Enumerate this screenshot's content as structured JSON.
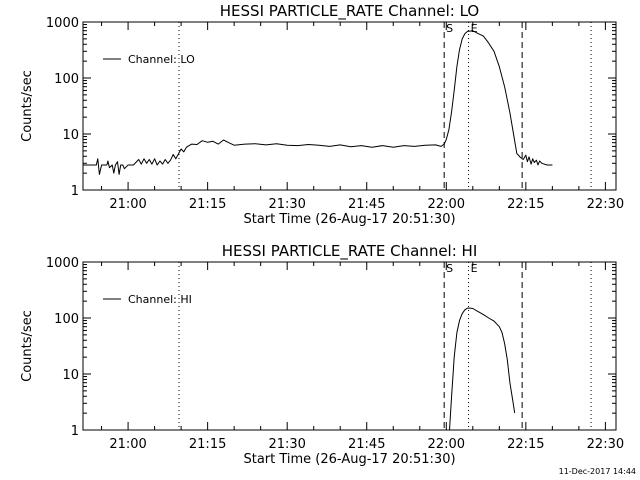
{
  "footer": {
    "timestamp": "11-Dec-2017 14:44"
  },
  "chart_data": [
    {
      "type": "line",
      "title": "HESSI PARTICLE_RATE Channel: LO",
      "xlabel": "Start Time (26-Aug-17 20:51:30)",
      "ylabel": "Counts/sec",
      "legend": {
        "label": "Channel: LO",
        "placement": "top-left"
      },
      "x_unit": "minutes of day",
      "xlim": [
        1251.5,
        1352.0
      ],
      "ylim": [
        1,
        1000
      ],
      "yscale": "log",
      "x_ticks": [
        {
          "value": 1260,
          "label": "21:00"
        },
        {
          "value": 1275,
          "label": "21:15"
        },
        {
          "value": 1290,
          "label": "21:30"
        },
        {
          "value": 1305,
          "label": "21:45"
        },
        {
          "value": 1320,
          "label": "22:00"
        },
        {
          "value": 1335,
          "label": "22:15"
        },
        {
          "value": 1350,
          "label": "22:30"
        }
      ],
      "y_ticks": [
        {
          "value": 1,
          "label": "1"
        },
        {
          "value": 10,
          "label": "10"
        },
        {
          "value": 100,
          "label": "100"
        },
        {
          "value": 1000,
          "label": "1000"
        }
      ],
      "vlines": [
        {
          "x": 1269.6,
          "style": "dotted",
          "label": ""
        },
        {
          "x": 1319.6,
          "style": "dashed",
          "label": "S"
        },
        {
          "x": 1324.2,
          "style": "dotted",
          "label": "E"
        },
        {
          "x": 1334.3,
          "style": "dashed",
          "label": ""
        },
        {
          "x": 1347.3,
          "style": "dotted",
          "label": ""
        }
      ],
      "series": [
        {
          "name": "Channel: LO",
          "x": [
            1251.5,
            1254.0,
            1254.3,
            1254.6,
            1255.0,
            1256.0,
            1256.2,
            1256.5,
            1257.0,
            1257.3,
            1257.6,
            1258.0,
            1258.3,
            1258.6,
            1259.0,
            1259.3,
            1260.0,
            1261.0,
            1262.0,
            1262.5,
            1263.0,
            1263.5,
            1264.0,
            1264.5,
            1265.0,
            1265.5,
            1266.0,
            1266.5,
            1267.0,
            1267.5,
            1268.0,
            1268.5,
            1269.0,
            1269.6,
            1270.0,
            1270.5,
            1271.0,
            1272.0,
            1273.0,
            1274.0,
            1275.0,
            1276.0,
            1277.0,
            1278.0,
            1279.0,
            1280.0,
            1282.0,
            1284.0,
            1286.0,
            1288.0,
            1290.0,
            1292.0,
            1294.0,
            1296.0,
            1298.0,
            1300.0,
            1302.0,
            1304.0,
            1306.0,
            1308.0,
            1310.0,
            1312.0,
            1314.0,
            1316.0,
            1318.0,
            1319.0,
            1319.6,
            1320.0,
            1320.5,
            1321.0,
            1321.5,
            1322.0,
            1322.5,
            1323.0,
            1323.5,
            1324.0,
            1325.0,
            1326.0,
            1327.0,
            1328.0,
            1329.0,
            1330.0,
            1331.0,
            1332.0,
            1332.8,
            1333.3,
            1334.0,
            1334.5,
            1335.0,
            1335.3,
            1335.6,
            1336.0,
            1336.3,
            1336.6,
            1337.0,
            1337.3,
            1337.6,
            1338.0,
            1339.0,
            1340.0
          ],
          "y": [
            2.8,
            2.8,
            3.6,
            1.9,
            2.8,
            2.8,
            3.3,
            2.5,
            2.8,
            2.0,
            2.8,
            3.2,
            1.9,
            2.8,
            2.8,
            2.4,
            2.8,
            2.8,
            3.5,
            2.9,
            3.6,
            3.0,
            3.5,
            2.9,
            3.6,
            2.8,
            3.3,
            2.9,
            3.5,
            3.0,
            3.4,
            4.3,
            3.6,
            4.6,
            5.4,
            4.8,
            5.8,
            6.6,
            6.5,
            7.6,
            7.1,
            7.4,
            6.6,
            7.8,
            7.0,
            6.3,
            6.6,
            6.7,
            6.4,
            6.7,
            6.3,
            6.2,
            6.5,
            6.3,
            6.0,
            6.4,
            5.9,
            6.2,
            5.8,
            6.2,
            5.8,
            6.2,
            6.0,
            6.3,
            6.4,
            6.0,
            6.6,
            8.0,
            12.0,
            25.0,
            60.0,
            160.0,
            320.0,
            500.0,
            620.0,
            680.0,
            700.0,
            620.0,
            560.0,
            420.0,
            300.0,
            160.0,
            70.0,
            24.0,
            8.5,
            4.5,
            3.8,
            3.5,
            4.2,
            3.2,
            3.9,
            2.9,
            3.6,
            3.1,
            3.4,
            2.8,
            3.3,
            3.0,
            2.8,
            2.8
          ]
        }
      ]
    },
    {
      "type": "line",
      "title": "HESSI PARTICLE_RATE Channel: HI",
      "xlabel": "Start Time (26-Aug-17 20:51:30)",
      "ylabel": "Counts/sec",
      "legend": {
        "label": "Channel: HI",
        "placement": "top-left"
      },
      "x_unit": "minutes of day",
      "xlim": [
        1251.5,
        1352.0
      ],
      "ylim": [
        1,
        1000
      ],
      "yscale": "log",
      "x_ticks": [
        {
          "value": 1260,
          "label": "21:00"
        },
        {
          "value": 1275,
          "label": "21:15"
        },
        {
          "value": 1290,
          "label": "21:30"
        },
        {
          "value": 1305,
          "label": "21:45"
        },
        {
          "value": 1320,
          "label": "22:00"
        },
        {
          "value": 1335,
          "label": "22:15"
        },
        {
          "value": 1350,
          "label": "22:30"
        }
      ],
      "y_ticks": [
        {
          "value": 1,
          "label": "1"
        },
        {
          "value": 10,
          "label": "10"
        },
        {
          "value": 100,
          "label": "100"
        },
        {
          "value": 1000,
          "label": "1000"
        }
      ],
      "vlines": [
        {
          "x": 1269.6,
          "style": "dotted",
          "label": ""
        },
        {
          "x": 1319.6,
          "style": "dashed",
          "label": "S"
        },
        {
          "x": 1324.2,
          "style": "dotted",
          "label": "E"
        },
        {
          "x": 1334.3,
          "style": "dashed",
          "label": ""
        },
        {
          "x": 1347.3,
          "style": "dotted",
          "label": ""
        }
      ],
      "series": [
        {
          "name": "Channel: HI",
          "x": [
            1320.6,
            1321.0,
            1321.5,
            1322.0,
            1322.5,
            1323.0,
            1323.5,
            1324.0,
            1324.5,
            1325.0,
            1326.0,
            1327.0,
            1328.0,
            1329.0,
            1330.0,
            1330.5,
            1331.0,
            1331.5,
            1332.0,
            1332.5,
            1332.9
          ],
          "y": [
            1.0,
            4.0,
            20.0,
            55.0,
            90.0,
            120.0,
            140.0,
            150.0,
            150.0,
            148.0,
            130.0,
            115.0,
            100.0,
            88.0,
            70.0,
            55.0,
            35.0,
            18.0,
            7.0,
            3.5,
            2.0
          ]
        }
      ]
    }
  ]
}
